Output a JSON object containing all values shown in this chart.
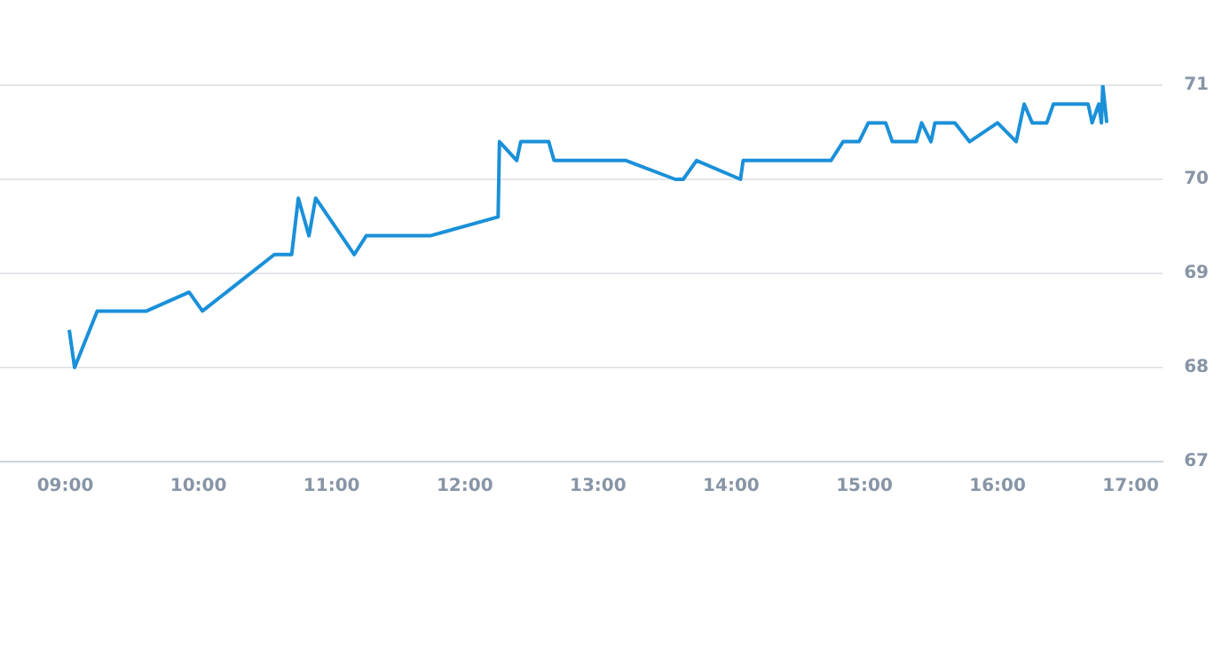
{
  "chart_data": {
    "type": "line",
    "x": [
      9.03,
      9.07,
      9.24,
      9.61,
      9.93,
      10.03,
      10.57,
      10.7,
      10.75,
      10.83,
      10.88,
      11.17,
      11.26,
      11.74,
      12.25,
      12.26,
      12.39,
      12.42,
      12.63,
      12.67,
      13.21,
      13.58,
      13.64,
      13.74,
      14.07,
      14.09,
      14.75,
      14.84,
      14.96,
      15.03,
      15.16,
      15.21,
      15.39,
      15.43,
      15.5,
      15.53,
      15.68,
      15.79,
      16.0,
      16.14,
      16.2,
      16.26,
      16.37,
      16.42,
      16.68,
      16.71,
      16.76,
      16.78,
      16.79,
      16.82
    ],
    "series": [
      {
        "color": "#1a90d9",
        "values": [
          68.4,
          68.0,
          68.6,
          68.6,
          68.8,
          68.6,
          69.2,
          69.2,
          69.8,
          69.4,
          69.8,
          69.2,
          69.4,
          69.4,
          69.6,
          70.4,
          70.2,
          70.4,
          70.4,
          70.2,
          70.2,
          70.0,
          70.0,
          70.2,
          70.0,
          70.2,
          70.2,
          70.4,
          70.4,
          70.6,
          70.6,
          70.4,
          70.4,
          70.6,
          70.4,
          70.6,
          70.6,
          70.4,
          70.6,
          70.4,
          70.8,
          70.6,
          70.6,
          70.8,
          70.8,
          70.6,
          70.8,
          70.6,
          71.0,
          70.6
        ]
      }
    ],
    "xlim": [
      8.51,
      17.24
    ],
    "xticks": [
      {
        "value": 9,
        "label": "09:00"
      },
      {
        "value": 10,
        "label": "10:00"
      },
      {
        "value": 11,
        "label": "11:00"
      },
      {
        "value": 12,
        "label": "12:00"
      },
      {
        "value": 13,
        "label": "13:00"
      },
      {
        "value": 14,
        "label": "14:00"
      },
      {
        "value": 15,
        "label": "15:00"
      },
      {
        "value": 16,
        "label": "16:00"
      },
      {
        "value": 17,
        "label": "17:00"
      }
    ],
    "ylim": [
      67,
      71
    ],
    "yticks": [
      67,
      68,
      69,
      70,
      71
    ],
    "grid": "y",
    "marker": "none",
    "line_style": "solid",
    "legend": false
  }
}
